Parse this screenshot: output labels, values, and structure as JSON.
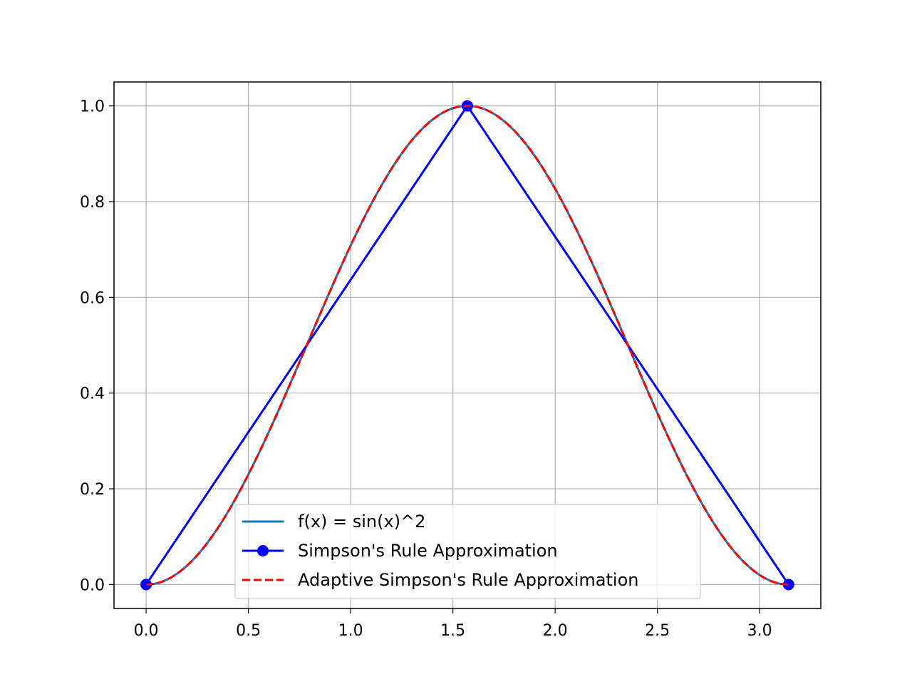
{
  "chart_data": {
    "type": "line",
    "title": "",
    "xlabel": "",
    "ylabel": "",
    "xlim": [
      -0.157,
      3.299
    ],
    "ylim": [
      -0.05,
      1.05
    ],
    "grid": true,
    "legend_position": "lower center",
    "x_ticks": [
      "0.0",
      "0.5",
      "1.0",
      "1.5",
      "2.0",
      "2.5",
      "3.0"
    ],
    "y_ticks": [
      "0.0",
      "0.2",
      "0.4",
      "0.6",
      "0.8",
      "1.0"
    ],
    "series": [
      {
        "name": "f(x) = sin(x)^2",
        "color": "#1f77b4",
        "style": "solid",
        "x": [
          0.0,
          0.1571,
          0.3142,
          0.4712,
          0.6283,
          0.7854,
          0.9425,
          1.0996,
          1.2566,
          1.4137,
          1.5708,
          1.7279,
          1.885,
          2.042,
          2.1991,
          2.3562,
          2.5133,
          2.6704,
          2.8274,
          2.9845,
          3.1416
        ],
        "y": [
          0.0,
          0.0245,
          0.0955,
          0.2061,
          0.3455,
          0.5,
          0.6545,
          0.7939,
          0.9045,
          0.9755,
          1.0,
          0.9755,
          0.9045,
          0.7939,
          0.6545,
          0.5,
          0.3455,
          0.2061,
          0.0955,
          0.0245,
          0.0
        ]
      },
      {
        "name": "Simpson's Rule Approximation",
        "color": "#0000ff",
        "style": "solid",
        "marker": "circle",
        "x": [
          0.0,
          1.5708,
          3.1416
        ],
        "y": [
          0.0,
          1.0,
          0.0
        ]
      },
      {
        "name": "Adaptive Simpson's Rule Approximation",
        "color": "#ff0000",
        "style": "dashed",
        "x": [
          0.0,
          0.1571,
          0.3142,
          0.4712,
          0.6283,
          0.7854,
          0.9425,
          1.0996,
          1.2566,
          1.4137,
          1.5708,
          1.7279,
          1.885,
          2.042,
          2.1991,
          2.3562,
          2.5133,
          2.6704,
          2.8274,
          2.9845,
          3.1416
        ],
        "y": [
          0.0,
          0.0245,
          0.0955,
          0.2061,
          0.3455,
          0.5,
          0.6545,
          0.7939,
          0.9045,
          0.9755,
          1.0,
          0.9755,
          0.9045,
          0.7939,
          0.6545,
          0.5,
          0.3455,
          0.2061,
          0.0955,
          0.0245,
          0.0
        ]
      }
    ]
  }
}
